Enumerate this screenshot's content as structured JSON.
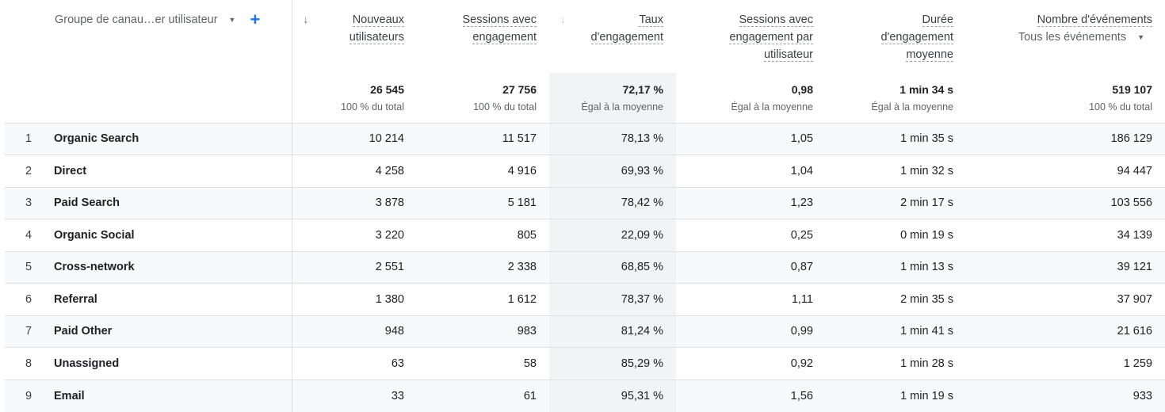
{
  "header": {
    "dimension": {
      "label": "Groupe de canau…er utilisateur",
      "dropdown_icon": "caret-down-icon",
      "add_icon": "plus-icon"
    },
    "columns": [
      {
        "label": "Nouveaux utilisateurs",
        "lines": [
          "Nouveaux",
          "utilisateurs"
        ],
        "sort_icon": "arrow-down-icon"
      },
      {
        "lines": [
          "Sessions avec",
          "engagement"
        ]
      },
      {
        "lines": [
          "Taux",
          "d'engagement"
        ],
        "sort_icon": "arrow-down-icon"
      },
      {
        "lines": [
          "Sessions avec",
          "engagement par",
          "utilisateur"
        ]
      },
      {
        "lines": [
          "Durée",
          "d'engagement",
          "moyenne"
        ]
      },
      {
        "lines": [
          "Nombre d'événements"
        ],
        "selector": "Tous les événements"
      }
    ]
  },
  "totals": [
    {
      "value": "26 545",
      "sub": "100 % du total"
    },
    {
      "value": "27 756",
      "sub": "100 % du total"
    },
    {
      "value": "72,17 %",
      "sub": "Égal à la moyenne"
    },
    {
      "value": "0,98",
      "sub": "Égal à la moyenne"
    },
    {
      "value": "1 min 34 s",
      "sub": "Égal à la moyenne"
    },
    {
      "value": "519 107",
      "sub": "100 % du total"
    }
  ],
  "rows": [
    {
      "n": "1",
      "label": "Organic Search",
      "v": [
        "10 214",
        "11 517",
        "78,13 %",
        "1,05",
        "1 min 35 s",
        "186 129"
      ]
    },
    {
      "n": "2",
      "label": "Direct",
      "v": [
        "4 258",
        "4 916",
        "69,93 %",
        "1,04",
        "1 min 32 s",
        "94 447"
      ]
    },
    {
      "n": "3",
      "label": "Paid Search",
      "v": [
        "3 878",
        "5 181",
        "78,42 %",
        "1,23",
        "2 min 17 s",
        "103 556"
      ]
    },
    {
      "n": "4",
      "label": "Organic Social",
      "v": [
        "3 220",
        "805",
        "22,09 %",
        "0,25",
        "0 min 19 s",
        "34 139"
      ]
    },
    {
      "n": "5",
      "label": "Cross-network",
      "v": [
        "2 551",
        "2 338",
        "68,85 %",
        "0,87",
        "1 min 13 s",
        "39 121"
      ]
    },
    {
      "n": "6",
      "label": "Referral",
      "v": [
        "1 380",
        "1 612",
        "78,37 %",
        "1,11",
        "2 min 35 s",
        "37 907"
      ]
    },
    {
      "n": "7",
      "label": "Paid Other",
      "v": [
        "948",
        "983",
        "81,24 %",
        "0,99",
        "1 min 41 s",
        "21 616"
      ]
    },
    {
      "n": "8",
      "label": "Unassigned",
      "v": [
        "63",
        "58",
        "85,29 %",
        "0,92",
        "1 min 28 s",
        "1 259"
      ]
    },
    {
      "n": "9",
      "label": "Email",
      "v": [
        "33",
        "61",
        "95,31 %",
        "1,56",
        "1 min 19 s",
        "933"
      ]
    }
  ],
  "colors": {
    "accent": "#1a73e8",
    "sorted_column_bg": "#f1f3f4",
    "stripe_bg": "#f8f9fa"
  }
}
